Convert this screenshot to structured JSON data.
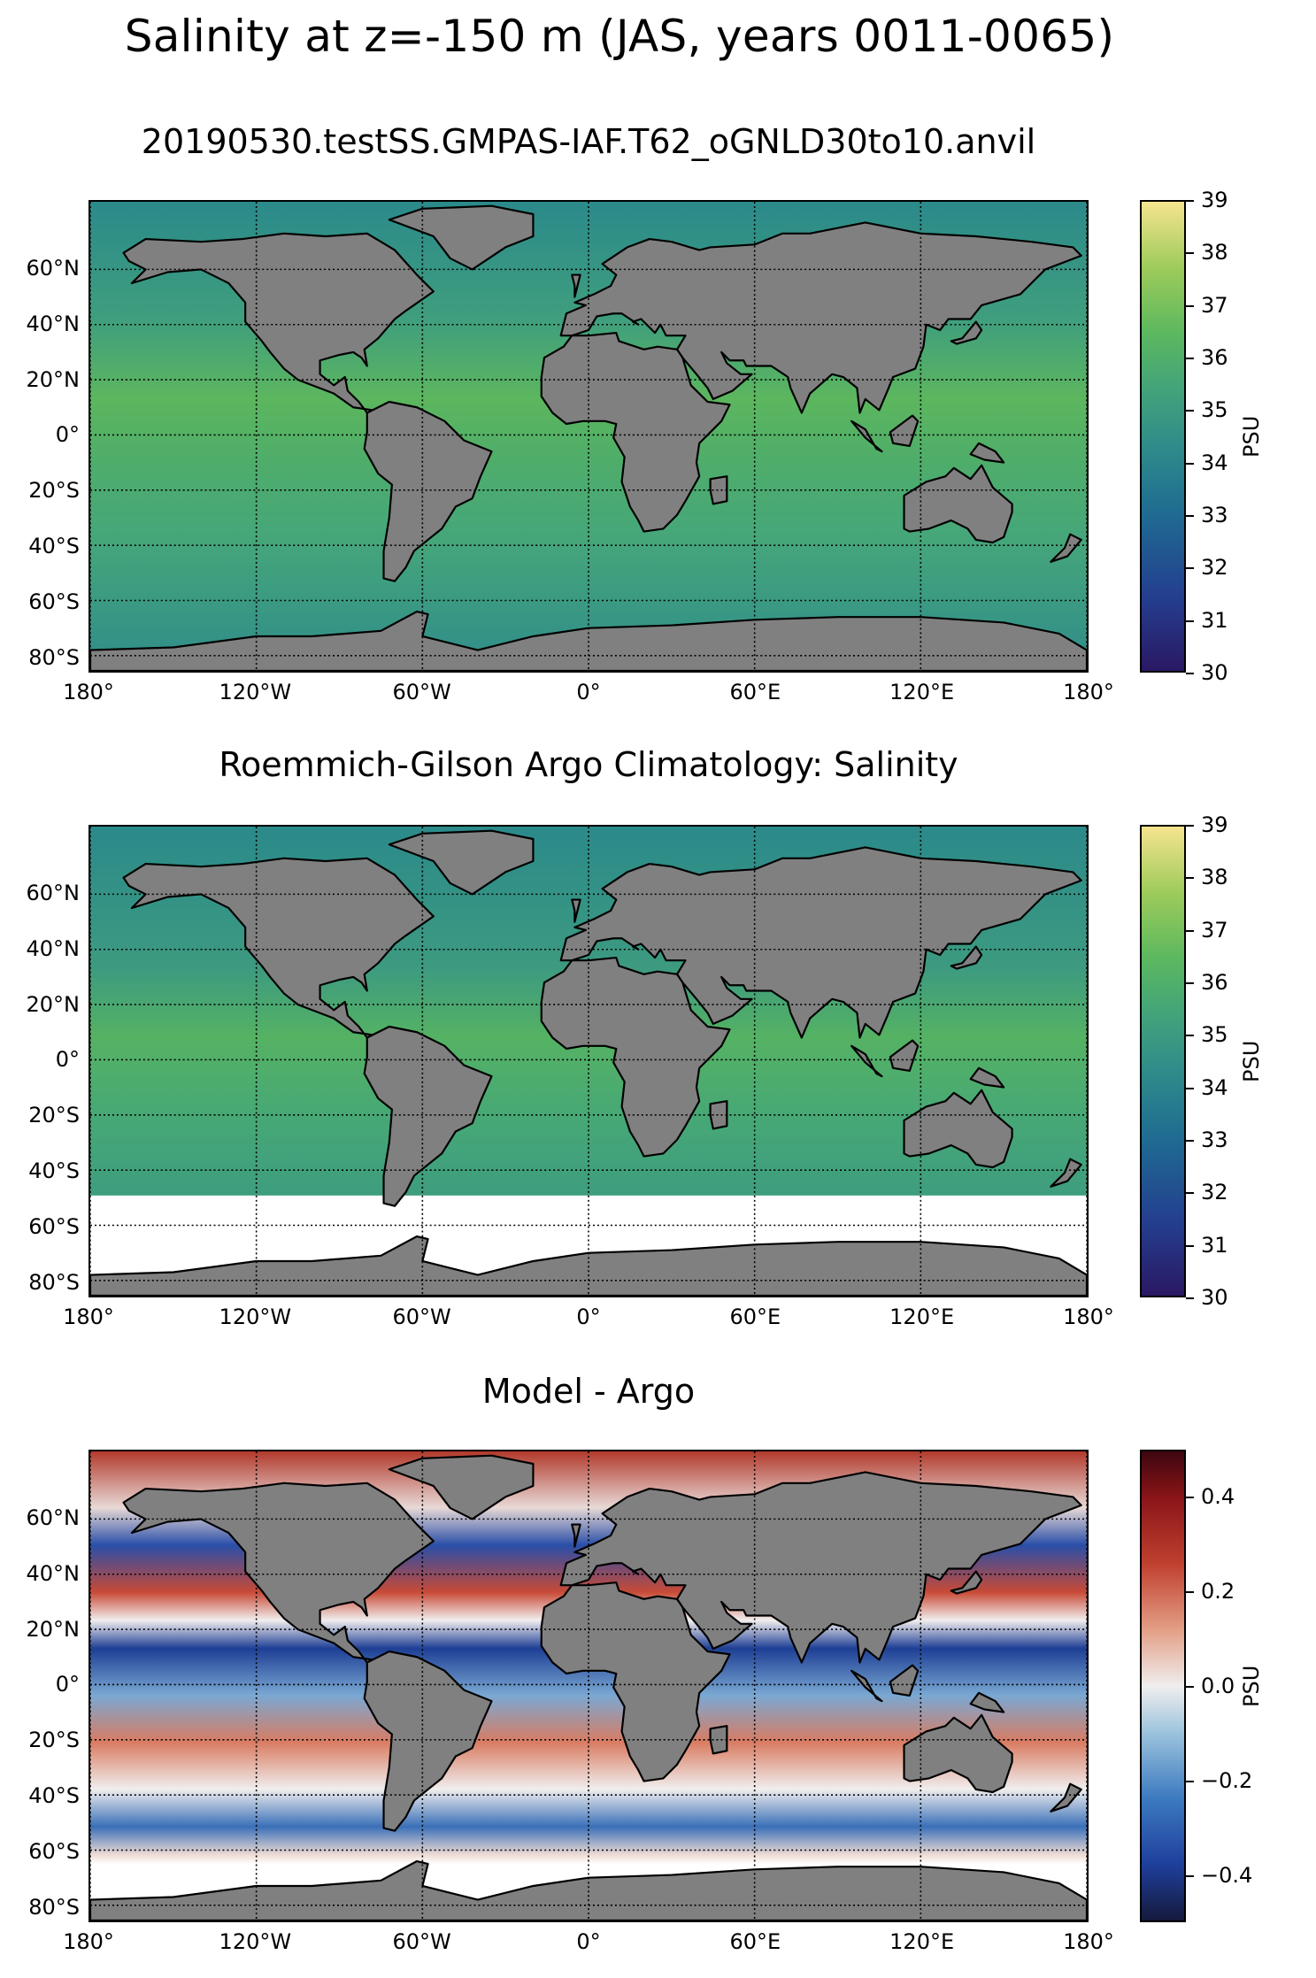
{
  "suptitle": "Salinity at z=-150 m (JAS, years 0011-0065)",
  "colors": {
    "land": "#808080",
    "coast": "#000000",
    "salinity_cmap": [
      "#2a1864",
      "#243f8f",
      "#1f6a92",
      "#2f8c8a",
      "#43a37a",
      "#5cb85f",
      "#9ecb5a",
      "#f6e48f"
    ],
    "diff_cmap": [
      "#151a3c",
      "#1f3f9c",
      "#3c7ac0",
      "#9cc3dd",
      "#f0eeee",
      "#e39e86",
      "#c0402f",
      "#8a1518",
      "#3e0610"
    ]
  },
  "axes": {
    "lat_ticks": [
      "60°N",
      "40°N",
      "20°N",
      "0°",
      "20°S",
      "40°S",
      "60°S",
      "80°S"
    ],
    "lon_ticks": [
      "180°",
      "120°W",
      "60°W",
      "0°",
      "60°E",
      "120°E",
      "180°"
    ],
    "gridlines": "dotted"
  },
  "panels": [
    {
      "title": "20190530.testSS.GMPAS-IAF.T62_oGNLD30to10.anvil",
      "colorbar": {
        "label": "PSU",
        "ticks": [
          "39",
          "38",
          "37",
          "36",
          "35",
          "34",
          "33",
          "32",
          "31",
          "30"
        ]
      }
    },
    {
      "title": "Roemmich-Gilson Argo Climatology: Salinity",
      "colorbar": {
        "label": "PSU",
        "ticks": [
          "39",
          "38",
          "37",
          "36",
          "35",
          "34",
          "33",
          "32",
          "31",
          "30"
        ]
      }
    },
    {
      "title": "Model - Argo",
      "colorbar": {
        "label": "PSU",
        "ticks": [
          "0.4",
          "0.2",
          "0.0",
          "−0.2",
          "−0.4"
        ]
      }
    }
  ]
}
